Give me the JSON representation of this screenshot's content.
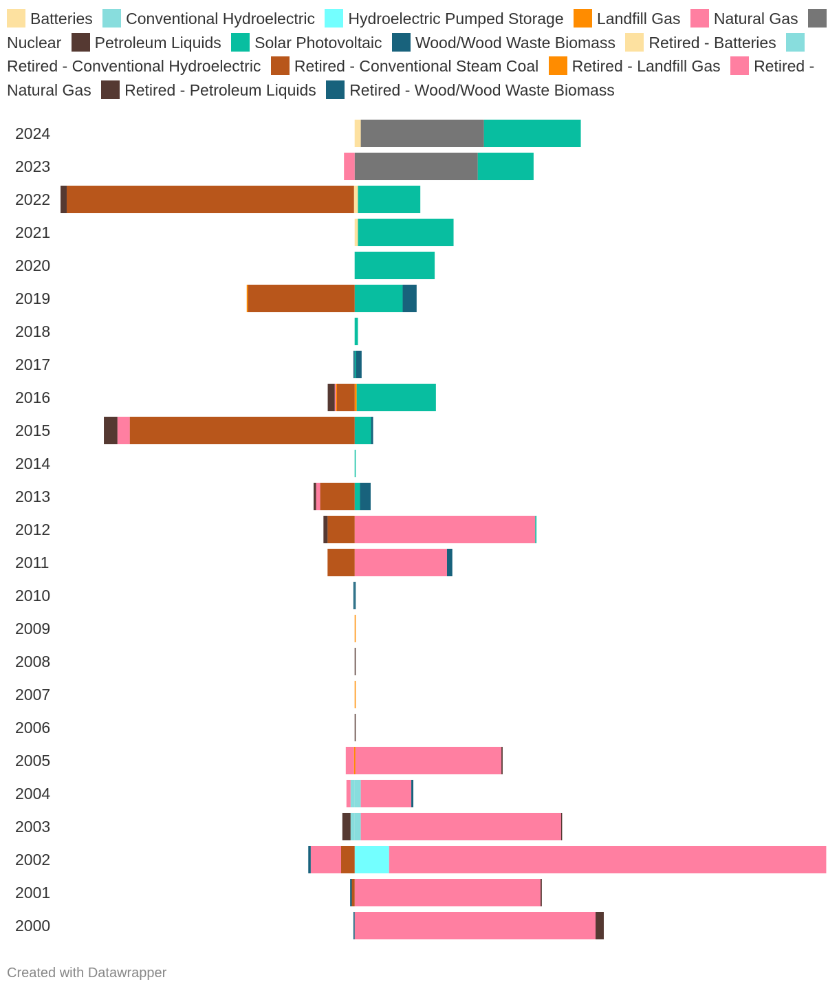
{
  "chart_data": {
    "type": "bar",
    "orientation": "horizontal",
    "stacked": true,
    "diverging": true,
    "title": "",
    "xlabel": "",
    "ylabel": "",
    "xlim": [
      -3600,
      5800
    ],
    "categories": [
      "2024",
      "2023",
      "2022",
      "2021",
      "2020",
      "2019",
      "2018",
      "2017",
      "2016",
      "2015",
      "2014",
      "2013",
      "2012",
      "2011",
      "2010",
      "2009",
      "2008",
      "2007",
      "2006",
      "2005",
      "2004",
      "2003",
      "2002",
      "2001",
      "2000"
    ],
    "legend_position": "top",
    "grid": false,
    "series": [
      {
        "name": "Batteries",
        "color": "#fde1a0",
        "values": [
          75,
          0,
          40,
          40,
          0,
          0,
          0,
          0,
          0,
          0,
          0,
          0,
          0,
          0,
          0,
          0,
          0,
          0,
          0,
          0,
          0,
          0,
          0,
          0,
          0
        ]
      },
      {
        "name": "Conventional Hydroelectric",
        "color": "#88dddd",
        "values": [
          0,
          0,
          0,
          0,
          0,
          0,
          0,
          0,
          0,
          0,
          0,
          0,
          0,
          0,
          0,
          0,
          0,
          0,
          0,
          0,
          75,
          75,
          0,
          0,
          0
        ]
      },
      {
        "name": "Hydroelectric Pumped Storage",
        "color": "#73ffff",
        "values": [
          0,
          0,
          0,
          0,
          0,
          0,
          0,
          0,
          0,
          0,
          0,
          0,
          0,
          0,
          0,
          0,
          0,
          0,
          0,
          0,
          0,
          0,
          420,
          0,
          0
        ]
      },
      {
        "name": "Landfill Gas",
        "color": "#ff8c00",
        "values": [
          0,
          0,
          0,
          0,
          0,
          0,
          0,
          0,
          25,
          0,
          0,
          0,
          0,
          0,
          0,
          8,
          0,
          8,
          0,
          8,
          0,
          0,
          0,
          0,
          0
        ]
      },
      {
        "name": "Natural Gas",
        "color": "#ff7fa1",
        "values": [
          0,
          0,
          0,
          0,
          0,
          0,
          0,
          0,
          0,
          0,
          0,
          0,
          2200,
          1125,
          0,
          0,
          0,
          0,
          0,
          1780,
          615,
          2440,
          5325,
          2265,
          2935
        ]
      },
      {
        "name": "Nuclear",
        "color": "#767676",
        "values": [
          1500,
          1500,
          0,
          0,
          0,
          0,
          0,
          0,
          0,
          0,
          0,
          0,
          0,
          0,
          0,
          0,
          0,
          0,
          0,
          0,
          0,
          0,
          0,
          0,
          0
        ]
      },
      {
        "name": "Petroleum Liquids",
        "color": "#553932",
        "values": [
          0,
          0,
          0,
          0,
          0,
          0,
          0,
          0,
          0,
          0,
          0,
          0,
          0,
          0,
          0,
          0,
          8,
          0,
          8,
          15,
          0,
          10,
          0,
          15,
          100
        ]
      },
      {
        "name": "Solar Photovoltaic",
        "color": "#08bea0",
        "values": [
          1180,
          680,
          760,
          1165,
          975,
          585,
          40,
          15,
          965,
          200,
          8,
          65,
          15,
          0,
          0,
          0,
          0,
          0,
          0,
          0,
          0,
          0,
          0,
          0,
          0
        ]
      },
      {
        "name": "Wood/Wood Waste Biomass",
        "color": "#18627c",
        "values": [
          0,
          0,
          0,
          0,
          0,
          170,
          0,
          70,
          0,
          25,
          0,
          130,
          0,
          65,
          10,
          0,
          0,
          0,
          0,
          0,
          25,
          0,
          0,
          0,
          0
        ]
      },
      {
        "name": "Retired - Batteries",
        "color": "#fde1a0",
        "values": [
          0,
          0,
          -8,
          0,
          0,
          0,
          0,
          0,
          0,
          0,
          0,
          0,
          0,
          0,
          0,
          0,
          0,
          0,
          0,
          0,
          0,
          0,
          0,
          0,
          0
        ]
      },
      {
        "name": "Retired - Conventional Hydroelectric",
        "color": "#88dddd",
        "values": [
          0,
          0,
          0,
          0,
          0,
          0,
          0,
          0,
          0,
          0,
          0,
          0,
          0,
          0,
          0,
          0,
          0,
          0,
          0,
          0,
          -50,
          -50,
          0,
          0,
          0
        ]
      },
      {
        "name": "Retired - Conventional Steam Coal",
        "color": "#b8561b",
        "values": [
          0,
          0,
          -3500,
          0,
          0,
          -1300,
          0,
          0,
          -220,
          -2740,
          0,
          -420,
          -330,
          -330,
          0,
          0,
          0,
          0,
          0,
          0,
          0,
          0,
          -165,
          -35,
          0
        ]
      },
      {
        "name": "Retired - Landfill Gas",
        "color": "#ff8c00",
        "values": [
          0,
          0,
          0,
          0,
          0,
          -15,
          0,
          0,
          -8,
          0,
          0,
          0,
          0,
          0,
          0,
          0,
          0,
          0,
          0,
          -8,
          0,
          0,
          0,
          0,
          0
        ]
      },
      {
        "name": "Retired - Natural Gas",
        "color": "#ff7fa1",
        "values": [
          0,
          -130,
          0,
          0,
          0,
          0,
          0,
          0,
          -15,
          -150,
          0,
          -50,
          0,
          0,
          0,
          0,
          0,
          0,
          0,
          -100,
          -50,
          0,
          -370,
          0,
          0
        ]
      },
      {
        "name": "Retired - Petroleum Liquids",
        "color": "#553932",
        "values": [
          0,
          0,
          -75,
          0,
          0,
          0,
          0,
          0,
          -85,
          -165,
          0,
          -30,
          -50,
          0,
          0,
          0,
          0,
          0,
          0,
          0,
          0,
          -100,
          0,
          0,
          0
        ]
      },
      {
        "name": "Retired - Wood/Wood Waste Biomass",
        "color": "#18627c",
        "values": [
          0,
          0,
          0,
          0,
          0,
          0,
          0,
          -15,
          0,
          0,
          0,
          0,
          0,
          0,
          -15,
          0,
          0,
          0,
          0,
          0,
          0,
          0,
          -30,
          -20,
          -15
        ]
      }
    ]
  },
  "footer": {
    "credit": "Created with Datawrapper"
  }
}
